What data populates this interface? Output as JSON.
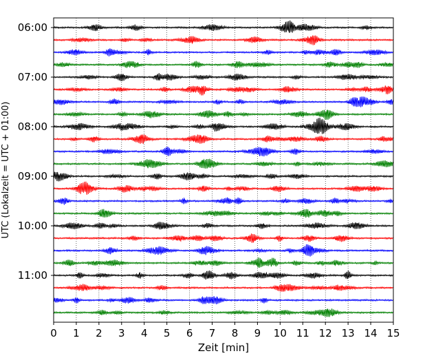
{
  "chart_data": {
    "type": "line",
    "title": "",
    "xlabel": "Zeit  [min]",
    "ylabel": "UTC (Lokalzeit = UTC + 01:00)",
    "xlim": [
      0,
      15
    ],
    "x_ticks": [
      0,
      1,
      2,
      3,
      4,
      5,
      6,
      7,
      8,
      9,
      10,
      11,
      12,
      13,
      14,
      15
    ],
    "x_tick_labels": [
      "0",
      "1",
      "2",
      "3",
      "4",
      "5",
      "6",
      "7",
      "8",
      "9",
      "10",
      "11",
      "12",
      "13",
      "14",
      "15"
    ],
    "y_tick_labels": [
      "06:00",
      "07:00",
      "08:00",
      "09:00",
      "10:00",
      "11:00"
    ],
    "grid": "vertical dotted",
    "legend": "none",
    "trace_colors": [
      "#000000",
      "#ff0000",
      "#0000ff",
      "#008000"
    ],
    "traces": [
      {
        "start_time": "06:00",
        "color": "#000000"
      },
      {
        "start_time": "06:15",
        "color": "#ff0000"
      },
      {
        "start_time": "06:30",
        "color": "#0000ff"
      },
      {
        "start_time": "06:45",
        "color": "#008000"
      },
      {
        "start_time": "07:00",
        "color": "#000000"
      },
      {
        "start_time": "07:15",
        "color": "#ff0000"
      },
      {
        "start_time": "07:30",
        "color": "#0000ff"
      },
      {
        "start_time": "07:45",
        "color": "#008000"
      },
      {
        "start_time": "08:00",
        "color": "#000000"
      },
      {
        "start_time": "08:15",
        "color": "#ff0000"
      },
      {
        "start_time": "08:30",
        "color": "#0000ff"
      },
      {
        "start_time": "08:45",
        "color": "#008000"
      },
      {
        "start_time": "09:00",
        "color": "#000000"
      },
      {
        "start_time": "09:15",
        "color": "#ff0000"
      },
      {
        "start_time": "09:30",
        "color": "#0000ff"
      },
      {
        "start_time": "09:45",
        "color": "#008000"
      },
      {
        "start_time": "10:00",
        "color": "#000000"
      },
      {
        "start_time": "10:15",
        "color": "#ff0000"
      },
      {
        "start_time": "10:30",
        "color": "#0000ff"
      },
      {
        "start_time": "10:45",
        "color": "#008000"
      },
      {
        "start_time": "11:00",
        "color": "#000000"
      },
      {
        "start_time": "11:15",
        "color": "#ff0000"
      },
      {
        "start_time": "11:30",
        "color": "#0000ff"
      },
      {
        "start_time": "11:45",
        "color": "#008000"
      }
    ]
  }
}
